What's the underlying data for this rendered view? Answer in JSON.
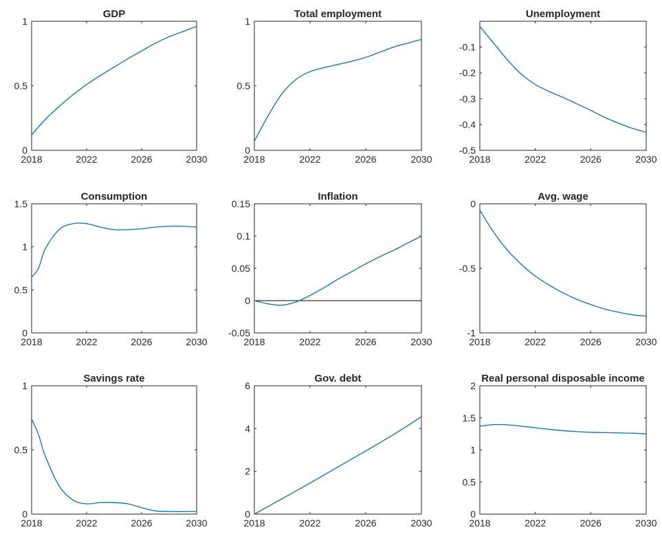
{
  "colors": {
    "series": "#0072bd",
    "axis": "#262626",
    "reference": "#000000"
  },
  "chart_data": [
    {
      "type": "line",
      "title": "GDP",
      "xlim": [
        2018,
        2030
      ],
      "ylim": [
        0,
        1
      ],
      "xticks": [
        "2018",
        "2022",
        "2026",
        "2030"
      ],
      "yticks": [
        "0",
        "0.5",
        "1"
      ],
      "series": [
        {
          "x": [
            2018,
            2019,
            2020,
            2021,
            2022,
            2023,
            2024,
            2025,
            2026,
            2027,
            2028,
            2029,
            2030
          ],
          "y": [
            0.12,
            0.24,
            0.34,
            0.43,
            0.51,
            0.58,
            0.645,
            0.71,
            0.77,
            0.83,
            0.88,
            0.92,
            0.96
          ]
        }
      ]
    },
    {
      "type": "line",
      "title": "Total employment",
      "xlim": [
        2018,
        2030
      ],
      "ylim": [
        0,
        1
      ],
      "xticks": [
        "2018",
        "2022",
        "2026",
        "2030"
      ],
      "yticks": [
        "0",
        "0.5",
        "1"
      ],
      "series": [
        {
          "x": [
            2018,
            2019,
            2020,
            2021,
            2022,
            2023,
            2024,
            2025,
            2026,
            2027,
            2028,
            2029,
            2030
          ],
          "y": [
            0.07,
            0.27,
            0.44,
            0.55,
            0.61,
            0.64,
            0.665,
            0.69,
            0.72,
            0.76,
            0.8,
            0.83,
            0.86
          ]
        }
      ]
    },
    {
      "type": "line",
      "title": "Unemployment",
      "xlim": [
        2018,
        2030
      ],
      "ylim": [
        -0.5,
        0
      ],
      "xticks": [
        "2018",
        "2022",
        "2026",
        "2030"
      ],
      "yticks": [
        "-0.5",
        "-0.4",
        "-0.3",
        "-0.2",
        "-0.1"
      ],
      "series": [
        {
          "x": [
            2018,
            2019,
            2020,
            2021,
            2022,
            2023,
            2024,
            2025,
            2026,
            2027,
            2028,
            2029,
            2030
          ],
          "y": [
            -0.02,
            -0.085,
            -0.15,
            -0.205,
            -0.245,
            -0.272,
            -0.295,
            -0.32,
            -0.345,
            -0.372,
            -0.395,
            -0.415,
            -0.43
          ]
        }
      ]
    },
    {
      "type": "line",
      "title": "Consumption",
      "xlim": [
        2018,
        2030
      ],
      "ylim": [
        0,
        1.5
      ],
      "xticks": [
        "2018",
        "2022",
        "2026",
        "2030"
      ],
      "yticks": [
        "0",
        "0.5",
        "1",
        "1.5"
      ],
      "series": [
        {
          "x": [
            2018,
            2018.5,
            2019,
            2020,
            2021,
            2022,
            2023,
            2024,
            2025,
            2026,
            2027,
            2028,
            2029,
            2030
          ],
          "y": [
            0.65,
            0.75,
            0.98,
            1.2,
            1.27,
            1.27,
            1.23,
            1.2,
            1.2,
            1.21,
            1.23,
            1.24,
            1.24,
            1.23
          ]
        }
      ]
    },
    {
      "type": "line",
      "title": "Inflation",
      "xlim": [
        2018,
        2030
      ],
      "ylim": [
        -0.05,
        0.15
      ],
      "xticks": [
        "2018",
        "2022",
        "2026",
        "2030"
      ],
      "yticks": [
        "-0.05",
        "0",
        "0.05",
        "0.1",
        "0.15"
      ],
      "reference_line": 0,
      "series": [
        {
          "x": [
            2018,
            2019,
            2020,
            2021,
            2022,
            2023,
            2024,
            2025,
            2026,
            2027,
            2028,
            2029,
            2030
          ],
          "y": [
            0,
            -0.005,
            -0.007,
            -0.002,
            0.008,
            0.02,
            0.033,
            0.045,
            0.057,
            0.068,
            0.078,
            0.089,
            0.1
          ]
        }
      ]
    },
    {
      "type": "line",
      "title": "Avg. wage",
      "xlim": [
        2018,
        2030
      ],
      "ylim": [
        -1,
        0
      ],
      "xticks": [
        "2018",
        "2022",
        "2026",
        "2030"
      ],
      "yticks": [
        "-1",
        "-0.5",
        "0"
      ],
      "series": [
        {
          "x": [
            2018,
            2019,
            2020,
            2021,
            2022,
            2023,
            2024,
            2025,
            2026,
            2027,
            2028,
            2029,
            2030
          ],
          "y": [
            -0.05,
            -0.22,
            -0.36,
            -0.47,
            -0.56,
            -0.63,
            -0.69,
            -0.74,
            -0.78,
            -0.815,
            -0.84,
            -0.86,
            -0.87
          ]
        }
      ]
    },
    {
      "type": "line",
      "title": "Savings rate",
      "xlim": [
        2018,
        2030
      ],
      "ylim": [
        0,
        1
      ],
      "xticks": [
        "2018",
        "2022",
        "2026",
        "2030"
      ],
      "yticks": [
        "0",
        "0.5",
        "1"
      ],
      "series": [
        {
          "x": [
            2018,
            2018.5,
            2019,
            2020,
            2021,
            2022,
            2023,
            2024,
            2025,
            2026,
            2027,
            2028,
            2029,
            2030
          ],
          "y": [
            0.74,
            0.62,
            0.45,
            0.22,
            0.11,
            0.08,
            0.09,
            0.09,
            0.08,
            0.05,
            0.025,
            0.02,
            0.02,
            0.02
          ]
        }
      ]
    },
    {
      "type": "line",
      "title": "Gov. debt",
      "xlim": [
        2018,
        2030
      ],
      "ylim": [
        0,
        6
      ],
      "xticks": [
        "2018",
        "2022",
        "2026",
        "2030"
      ],
      "yticks": [
        "0",
        "2",
        "4",
        "6"
      ],
      "series": [
        {
          "x": [
            2018,
            2020,
            2022,
            2024,
            2026,
            2028,
            2030
          ],
          "y": [
            0,
            0.72,
            1.45,
            2.2,
            2.95,
            3.72,
            4.55
          ]
        }
      ]
    },
    {
      "type": "line",
      "title": "Real personal disposable income",
      "xlim": [
        2018,
        2030
      ],
      "ylim": [
        0,
        2
      ],
      "xticks": [
        "2018",
        "2022",
        "2026",
        "2030"
      ],
      "yticks": [
        "0",
        "0.5",
        "1",
        "1.5",
        "2"
      ],
      "series": [
        {
          "x": [
            2018,
            2019,
            2020,
            2021,
            2022,
            2023,
            2024,
            2025,
            2026,
            2027,
            2028,
            2029,
            2030
          ],
          "y": [
            1.37,
            1.395,
            1.39,
            1.37,
            1.345,
            1.32,
            1.3,
            1.285,
            1.275,
            1.27,
            1.265,
            1.26,
            1.25
          ]
        }
      ]
    }
  ]
}
